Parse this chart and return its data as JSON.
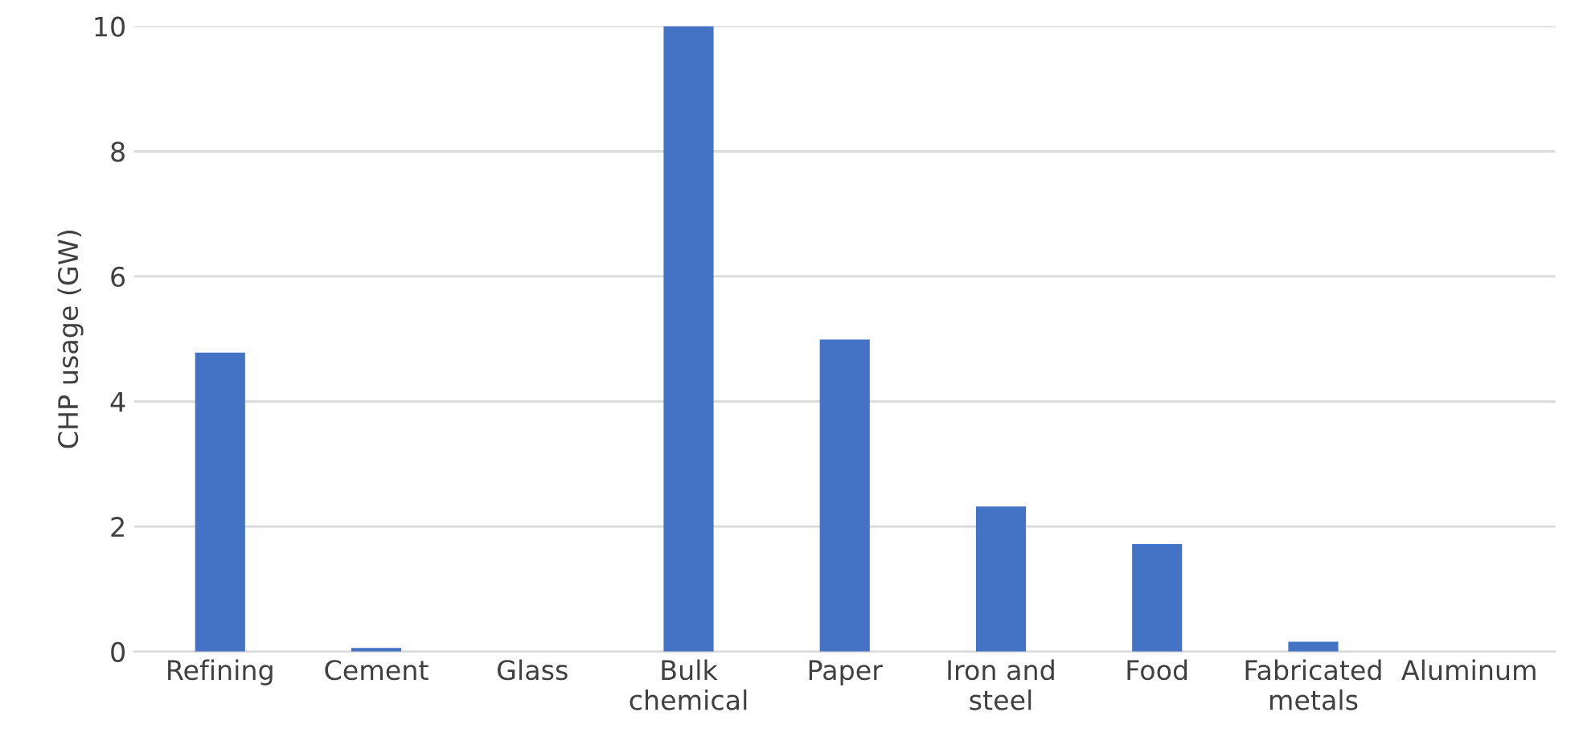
{
  "chart_data": {
    "type": "bar",
    "ylabel": "CHP usage (GW)",
    "categories": [
      "Refining",
      "Cement",
      "Glass",
      "Bulk\nchemical",
      "Paper",
      "Iron and\nsteel",
      "Food",
      "Fabricated\nmetals",
      "Aluminum"
    ],
    "values": [
      4.78,
      0.06,
      0,
      10,
      4.99,
      2.32,
      1.72,
      0.16,
      0
    ],
    "color": "#4472c4",
    "ylim": [
      0,
      10
    ],
    "yticks": [
      0,
      2,
      4,
      6,
      8,
      10
    ],
    "grid": "y"
  }
}
